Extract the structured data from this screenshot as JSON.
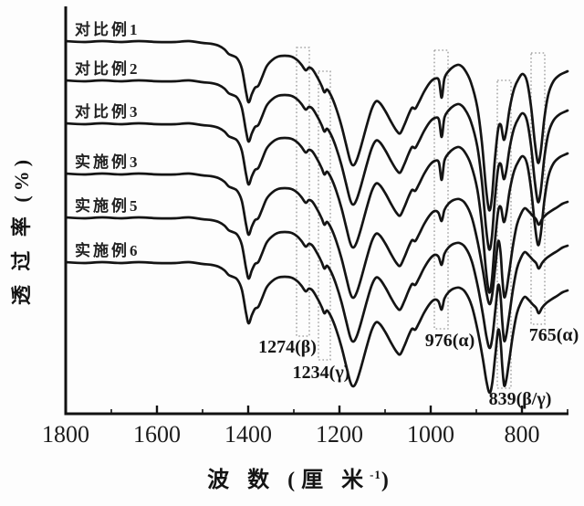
{
  "chart_data": {
    "type": "line",
    "title": "",
    "xlabel": "波数 (厘米⁻¹)",
    "xlabel_parts": {
      "main": "波 数 (厘 米",
      "sup": "-1",
      "close": ")"
    },
    "ylabel": "透过率 (%)",
    "ylabel_display": "透 过 率 (%)",
    "x_axis": {
      "unit": "厘米⁻¹",
      "min": 700,
      "max": 1800,
      "direction": "decreasing",
      "major_ticks": [
        1800,
        1600,
        1400,
        1200,
        1000,
        800
      ],
      "minor_ticks": [
        1700,
        1500,
        1300,
        1100,
        900,
        700
      ]
    },
    "y_axis": {
      "unit": "%",
      "scale": "stacked transmittance curves, arbitrary offsets",
      "ticks": []
    },
    "annotations": [
      {
        "text": "1274(β)",
        "wavenumber": 1274
      },
      {
        "text": "1234(γ)",
        "wavenumber": 1234
      },
      {
        "text": "976(α)",
        "wavenumber": 976
      },
      {
        "text": "839(β/γ)",
        "wavenumber": 839
      },
      {
        "text": "765(α)",
        "wavenumber": 765
      }
    ],
    "series": [
      {
        "name": "对比例1",
        "profile": "alpha",
        "baseline": 45
      },
      {
        "name": "对比例2",
        "profile": "alpha",
        "baseline": 88
      },
      {
        "name": "对比例3",
        "profile": "alpha",
        "baseline": 135
      },
      {
        "name": "实施例3",
        "profile": "beta",
        "baseline": 190
      },
      {
        "name": "实施例5",
        "profile": "beta",
        "baseline": 238
      },
      {
        "name": "实施例6",
        "profile": "beta",
        "baseline": 287
      }
    ],
    "profiles": {
      "alpha": [
        [
          1800,
          0
        ],
        [
          1760,
          1
        ],
        [
          1720,
          0
        ],
        [
          1680,
          1
        ],
        [
          1640,
          0
        ],
        [
          1600,
          1
        ],
        [
          1560,
          1
        ],
        [
          1530,
          0
        ],
        [
          1500,
          2
        ],
        [
          1480,
          3
        ],
        [
          1465,
          5
        ],
        [
          1452,
          9
        ],
        [
          1443,
          14
        ],
        [
          1434,
          16
        ],
        [
          1424,
          19
        ],
        [
          1414,
          30
        ],
        [
          1405,
          55
        ],
        [
          1399,
          67
        ],
        [
          1392,
          58
        ],
        [
          1385,
          51
        ],
        [
          1378,
          49
        ],
        [
          1370,
          40
        ],
        [
          1360,
          28
        ],
        [
          1348,
          21
        ],
        [
          1335,
          17
        ],
        [
          1320,
          16
        ],
        [
          1305,
          17
        ],
        [
          1292,
          21
        ],
        [
          1283,
          26
        ],
        [
          1274,
          32
        ],
        [
          1267,
          29
        ],
        [
          1259,
          31
        ],
        [
          1248,
          40
        ],
        [
          1239,
          49
        ],
        [
          1233,
          56
        ],
        [
          1227,
          53
        ],
        [
          1218,
          60
        ],
        [
          1207,
          74
        ],
        [
          1196,
          92
        ],
        [
          1186,
          112
        ],
        [
          1177,
          130
        ],
        [
          1170,
          136
        ],
        [
          1162,
          130
        ],
        [
          1152,
          114
        ],
        [
          1140,
          92
        ],
        [
          1129,
          74
        ],
        [
          1120,
          66
        ],
        [
          1111,
          68
        ],
        [
          1099,
          77
        ],
        [
          1086,
          89
        ],
        [
          1075,
          98
        ],
        [
          1067,
          101
        ],
        [
          1058,
          92
        ],
        [
          1049,
          81
        ],
        [
          1041,
          73
        ],
        [
          1034,
          74
        ],
        [
          1026,
          67
        ],
        [
          1014,
          55
        ],
        [
          1001,
          45
        ],
        [
          990,
          41
        ],
        [
          982,
          43
        ],
        [
          976,
          62
        ],
        [
          970,
          41
        ],
        [
          961,
          33
        ],
        [
          950,
          28
        ],
        [
          938,
          26
        ],
        [
          926,
          31
        ],
        [
          912,
          45
        ],
        [
          898,
          72
        ],
        [
          888,
          110
        ],
        [
          879,
          160
        ],
        [
          872,
          185
        ],
        [
          866,
          172
        ],
        [
          859,
          128
        ],
        [
          852,
          96
        ],
        [
          846,
          92
        ],
        [
          840,
          108
        ],
        [
          834,
          98
        ],
        [
          827,
          74
        ],
        [
          817,
          52
        ],
        [
          807,
          41
        ],
        [
          798,
          36
        ],
        [
          789,
          44
        ],
        [
          780,
          72
        ],
        [
          772,
          110
        ],
        [
          765,
          133
        ],
        [
          759,
          122
        ],
        [
          751,
          85
        ],
        [
          742,
          58
        ],
        [
          731,
          44
        ],
        [
          717,
          37
        ],
        [
          700,
          33
        ]
      ],
      "beta": [
        [
          1800,
          0
        ],
        [
          1760,
          1
        ],
        [
          1720,
          0
        ],
        [
          1680,
          1
        ],
        [
          1640,
          0
        ],
        [
          1600,
          1
        ],
        [
          1560,
          1
        ],
        [
          1530,
          0
        ],
        [
          1500,
          2
        ],
        [
          1480,
          3
        ],
        [
          1465,
          5
        ],
        [
          1452,
          9
        ],
        [
          1443,
          14
        ],
        [
          1434,
          16
        ],
        [
          1424,
          19
        ],
        [
          1414,
          30
        ],
        [
          1405,
          55
        ],
        [
          1399,
          67
        ],
        [
          1392,
          58
        ],
        [
          1385,
          51
        ],
        [
          1378,
          49
        ],
        [
          1370,
          40
        ],
        [
          1360,
          28
        ],
        [
          1348,
          21
        ],
        [
          1335,
          17
        ],
        [
          1320,
          16
        ],
        [
          1305,
          17
        ],
        [
          1292,
          21
        ],
        [
          1283,
          26
        ],
        [
          1274,
          32
        ],
        [
          1267,
          29
        ],
        [
          1259,
          31
        ],
        [
          1248,
          40
        ],
        [
          1239,
          49
        ],
        [
          1233,
          56
        ],
        [
          1227,
          53
        ],
        [
          1218,
          60
        ],
        [
          1207,
          74
        ],
        [
          1196,
          92
        ],
        [
          1186,
          112
        ],
        [
          1177,
          130
        ],
        [
          1170,
          136
        ],
        [
          1162,
          130
        ],
        [
          1152,
          114
        ],
        [
          1140,
          92
        ],
        [
          1129,
          74
        ],
        [
          1120,
          66
        ],
        [
          1111,
          68
        ],
        [
          1099,
          77
        ],
        [
          1086,
          89
        ],
        [
          1075,
          98
        ],
        [
          1067,
          101
        ],
        [
          1058,
          92
        ],
        [
          1049,
          81
        ],
        [
          1041,
          73
        ],
        [
          1034,
          74
        ],
        [
          1026,
          67
        ],
        [
          1014,
          55
        ],
        [
          1001,
          45
        ],
        [
          991,
          41
        ],
        [
          983,
          43
        ],
        [
          976,
          52
        ],
        [
          970,
          40
        ],
        [
          961,
          33
        ],
        [
          950,
          29
        ],
        [
          937,
          28
        ],
        [
          924,
          33
        ],
        [
          910,
          48
        ],
        [
          897,
          75
        ],
        [
          886,
          105
        ],
        [
          878,
          130
        ],
        [
          871,
          143
        ],
        [
          865,
          132
        ],
        [
          858,
          100
        ],
        [
          852,
          74
        ],
        [
          847,
          86
        ],
        [
          843,
          115
        ],
        [
          839,
          135
        ],
        [
          834,
          128
        ],
        [
          828,
          108
        ],
        [
          820,
          80
        ],
        [
          811,
          56
        ],
        [
          802,
          44
        ],
        [
          794,
          38
        ],
        [
          786,
          41
        ],
        [
          777,
          46
        ],
        [
          769,
          50
        ],
        [
          763,
          56
        ],
        [
          756,
          50
        ],
        [
          747,
          45
        ],
        [
          736,
          41
        ],
        [
          723,
          37
        ],
        [
          711,
          33
        ],
        [
          700,
          31
        ]
      ]
    }
  }
}
